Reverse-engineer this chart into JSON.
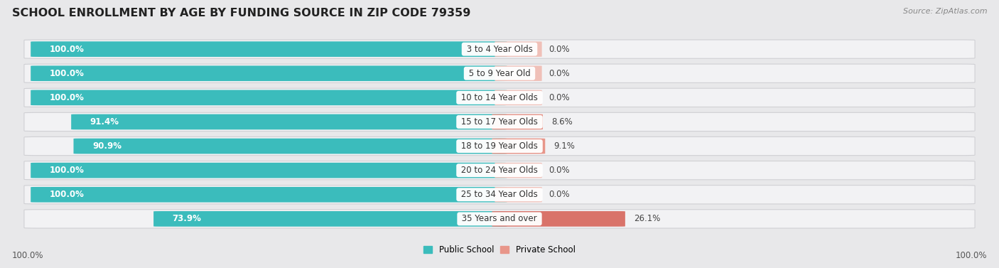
{
  "title": "SCHOOL ENROLLMENT BY AGE BY FUNDING SOURCE IN ZIP CODE 79359",
  "source": "Source: ZipAtlas.com",
  "categories": [
    "3 to 4 Year Olds",
    "5 to 9 Year Old",
    "10 to 14 Year Olds",
    "15 to 17 Year Olds",
    "18 to 19 Year Olds",
    "20 to 24 Year Olds",
    "25 to 34 Year Olds",
    "35 Years and over"
  ],
  "public_pct": [
    100.0,
    100.0,
    100.0,
    91.4,
    90.9,
    100.0,
    100.0,
    73.9
  ],
  "private_pct": [
    0.0,
    0.0,
    0.0,
    8.6,
    9.1,
    0.0,
    0.0,
    26.1
  ],
  "public_color": "#3bbcbc",
  "private_color": "#e8968a",
  "private_color_last": "#d9736a",
  "row_bg_color": "#e8e8ea",
  "row_inner_bg": "#f5f5f7",
  "bar_height": 0.62,
  "title_fontsize": 11.5,
  "label_fontsize": 8.5,
  "source_fontsize": 8,
  "axis_label_left": "100.0%",
  "axis_label_right": "100.0%"
}
